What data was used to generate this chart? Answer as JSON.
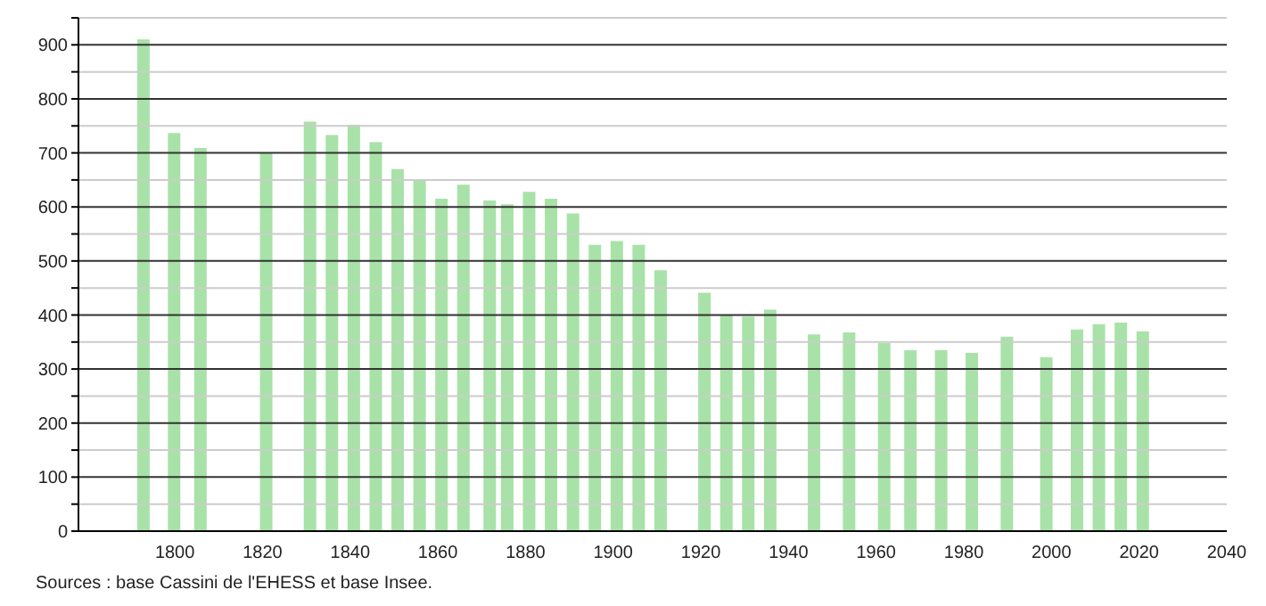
{
  "chart_data": {
    "type": "bar",
    "x": [
      1793,
      1800,
      1806,
      1821,
      1831,
      1836,
      1841,
      1846,
      1851,
      1856,
      1861,
      1866,
      1872,
      1876,
      1881,
      1886,
      1891,
      1896,
      1901,
      1906,
      1911,
      1921,
      1926,
      1931,
      1936,
      1946,
      1954,
      1962,
      1968,
      1975,
      1982,
      1990,
      1999,
      2006,
      2011,
      2016,
      2021
    ],
    "values": [
      910,
      737,
      709,
      700,
      758,
      733,
      752,
      720,
      670,
      650,
      615,
      641,
      612,
      605,
      628,
      615,
      588,
      530,
      537,
      530,
      483,
      441,
      400,
      397,
      410,
      364,
      368,
      348,
      335,
      335,
      330,
      360,
      322,
      373,
      383,
      386,
      370
    ],
    "color": "#a8e2a8",
    "xlim": [
      1778,
      2040
    ],
    "xticks": [
      1800,
      1820,
      1840,
      1860,
      1880,
      1900,
      1920,
      1940,
      1960,
      1980,
      2000,
      2020,
      2040
    ],
    "ylim": [
      0,
      950
    ],
    "yticks": [
      0,
      {
        "value": 50,
        "label": null
      },
      100,
      {
        "value": 150,
        "label": null
      },
      200,
      {
        "value": 250,
        "label": null
      },
      300,
      {
        "value": 350,
        "label": null
      },
      400,
      {
        "value": 450,
        "label": null
      },
      500,
      {
        "value": 550,
        "label": null
      },
      600,
      {
        "value": 650,
        "label": null
      },
      700,
      {
        "value": 750,
        "label": null
      },
      800,
      {
        "value": 850,
        "label": null
      },
      900,
      {
        "value": 950,
        "label": null
      }
    ],
    "grid": "y",
    "annotations": [
      "Sources : base Cassini de l'EHESS et base Insee."
    ]
  }
}
